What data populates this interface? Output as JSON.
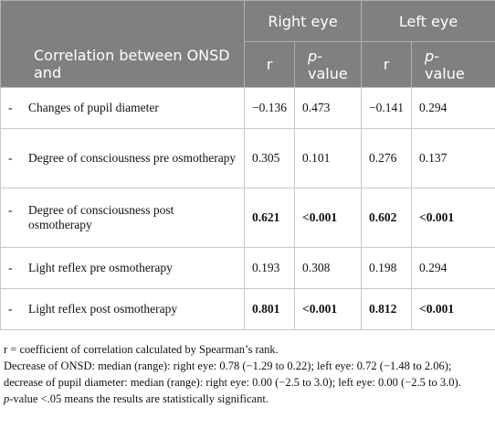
{
  "table": {
    "header": {
      "row_label": "Correlation between ONSD and",
      "groups": [
        "Right eye",
        "Left eye"
      ],
      "columns": [
        {
          "text": "r"
        },
        {
          "italic": "p-",
          "text": "value"
        },
        {
          "text": "r"
        },
        {
          "italic": "p-",
          "text": "value"
        }
      ]
    },
    "rows": [
      {
        "marker": "-",
        "label": "Changes of pupil diameter",
        "cells": [
          "−0.136",
          "0.473",
          "−0.141",
          "0.294"
        ],
        "bold": false
      },
      {
        "marker": "-",
        "label": "Degree of consciousness pre osmotherapy",
        "cells": [
          "0.305",
          "0.101",
          "0.276",
          "0.137"
        ],
        "bold": false
      },
      {
        "marker": "-",
        "label": "Degree of consciousness post osmotherapy",
        "cells": [
          "0.621",
          "<0.001",
          "0.602",
          "<0.001"
        ],
        "bold": true
      },
      {
        "marker": "-",
        "label": "Light reflex pre osmotherapy",
        "cells": [
          "0.193",
          "0.308",
          "0.198",
          "0.294"
        ],
        "bold": false
      },
      {
        "marker": "-",
        "label": "Light reflex post osmotherapy",
        "cells": [
          "0.801",
          "<0.001",
          "0.812",
          "<0.001"
        ],
        "bold": true
      }
    ],
    "notes": [
      {
        "text": "r = coefficient of correlation calculated by Spearman’s rank."
      },
      {
        "text": "Decrease of ONSD: median (range): right eye: 0.78 (−1.29 to 0.22); left eye: 0.72 (−1.48 to 2.06); decrease of pupil diameter: median (range): right eye: 0.00 (−2.5 to 3.0); left eye: 0.00 (−2.5 to 3.0)."
      },
      {
        "italic": "p",
        "text": "-value <.05 means the results are statistically significant."
      }
    ]
  }
}
